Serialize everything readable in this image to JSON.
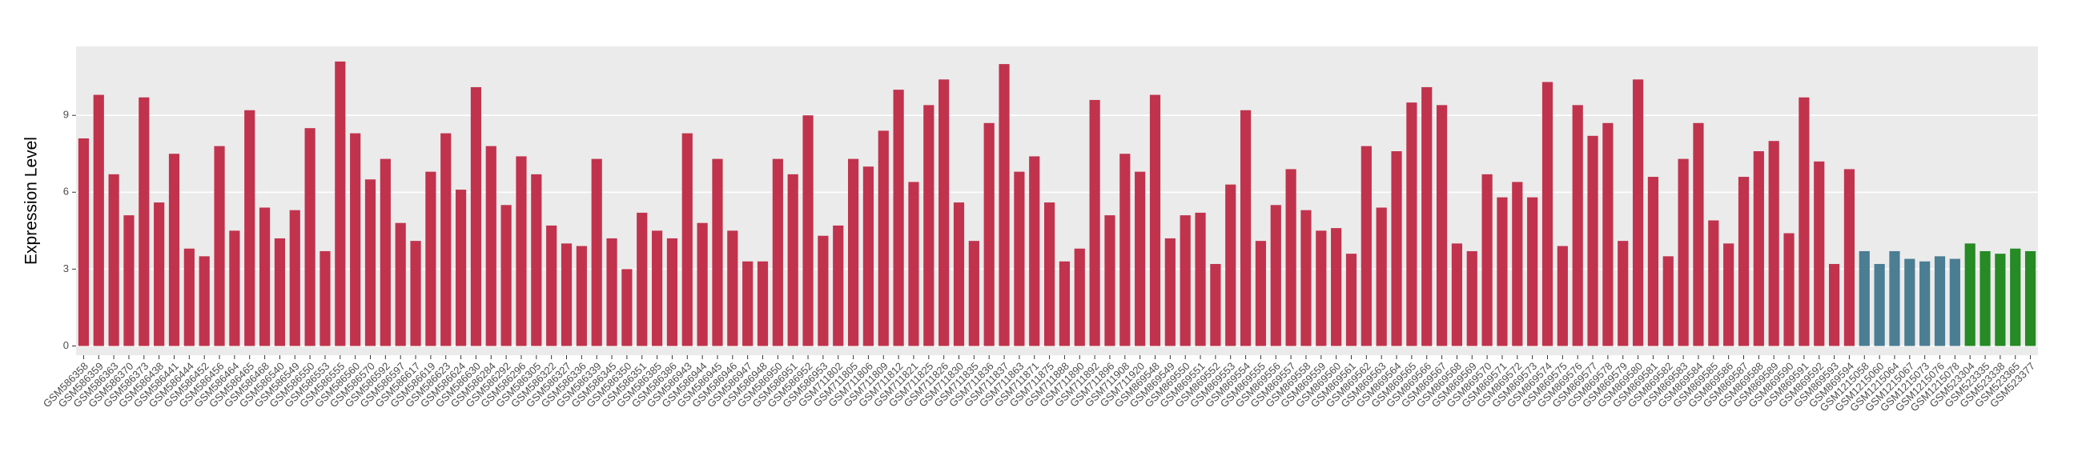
{
  "chart_data": {
    "type": "bar",
    "y_label": "Expression Level",
    "categories": [
      "GSM586358",
      "GSM586359",
      "GSM586363",
      "GSM586370",
      "GSM586373",
      "GSM586438",
      "GSM586441",
      "GSM586444",
      "GSM586452",
      "GSM586456",
      "GSM586464",
      "GSM586465",
      "GSM586468",
      "GSM586540",
      "GSM586549",
      "GSM586550",
      "GSM586553",
      "GSM586555",
      "GSM586560",
      "GSM586570",
      "GSM586592",
      "GSM586597",
      "GSM586617",
      "GSM586619",
      "GSM586623",
      "GSM586624",
      "GSM586630",
      "GSM586284",
      "GSM586292",
      "GSM586296",
      "GSM586305",
      "GSM586322",
      "GSM586327",
      "GSM586336",
      "GSM586339",
      "GSM586345",
      "GSM586350",
      "GSM586351",
      "GSM586385",
      "GSM586386",
      "GSM586943",
      "GSM586944",
      "GSM586945",
      "GSM586946",
      "GSM586947",
      "GSM586948",
      "GSM586950",
      "GSM586951",
      "GSM586952",
      "GSM586953",
      "GSM711802",
      "GSM711805",
      "GSM711806",
      "GSM711809",
      "GSM711812",
      "GSM711821",
      "GSM711825",
      "GSM711826",
      "GSM711830",
      "GSM711835",
      "GSM711836",
      "GSM711837",
      "GSM711863",
      "GSM711871",
      "GSM711875",
      "GSM711888",
      "GSM711890",
      "GSM711892",
      "GSM711896",
      "GSM711908",
      "GSM711920",
      "GSM869548",
      "GSM869549",
      "GSM869550",
      "GSM869551",
      "GSM869552",
      "GSM869553",
      "GSM869554",
      "GSM869555",
      "GSM869556",
      "GSM869557",
      "GSM869558",
      "GSM869559",
      "GSM869560",
      "GSM869561",
      "GSM869562",
      "GSM869563",
      "GSM869564",
      "GSM869565",
      "GSM869566",
      "GSM869567",
      "GSM869568",
      "GSM869569",
      "GSM869570",
      "GSM869571",
      "GSM869572",
      "GSM869573",
      "GSM869574",
      "GSM869575",
      "GSM869576",
      "GSM869577",
      "GSM869578",
      "GSM869579",
      "GSM869580",
      "GSM869581",
      "GSM869582",
      "GSM869583",
      "GSM869584",
      "GSM869585",
      "GSM869586",
      "GSM869587",
      "GSM869588",
      "GSM869589",
      "GSM869590",
      "GSM869591",
      "GSM869592",
      "GSM869593",
      "GSM869594",
      "GSM1215058",
      "GSM1215060",
      "GSM1215064",
      "GSM1215067",
      "GSM1215073",
      "GSM1215076",
      "GSM1215078",
      "GSM523304",
      "GSM523335",
      "GSM523338",
      "GSM523365",
      "GSM523377"
    ],
    "values": [
      8.1,
      9.8,
      6.7,
      5.1,
      9.7,
      5.6,
      7.5,
      3.8,
      3.5,
      7.8,
      4.5,
      9.2,
      5.4,
      4.2,
      5.3,
      8.5,
      3.7,
      11.1,
      8.3,
      6.5,
      7.3,
      4.8,
      4.1,
      6.8,
      8.3,
      6.1,
      10.1,
      7.8,
      5.5,
      7.4,
      6.7,
      4.7,
      4.0,
      3.9,
      7.3,
      4.2,
      3.0,
      5.2,
      4.5,
      4.2,
      8.3,
      4.8,
      7.3,
      4.5,
      3.3,
      3.3,
      7.3,
      6.7,
      9.0,
      4.3,
      4.7,
      7.3,
      7.0,
      8.4,
      10.0,
      6.4,
      9.4,
      10.4,
      5.6,
      4.1,
      8.7,
      11.0,
      6.8,
      7.4,
      5.6,
      3.3,
      3.8,
      9.6,
      5.1,
      7.5,
      6.8,
      9.8,
      4.2,
      5.1,
      5.2,
      3.2,
      6.3,
      9.2,
      4.1,
      5.5,
      6.9,
      5.3,
      4.5,
      4.6,
      3.6,
      7.8,
      5.4,
      7.6,
      9.5,
      10.1,
      9.4,
      4.0,
      3.7,
      6.7,
      5.8,
      6.4,
      5.8,
      10.3,
      3.9,
      9.4,
      8.2,
      8.7,
      4.1,
      10.4,
      6.6,
      3.5,
      7.3,
      8.7,
      4.9,
      4.0,
      6.6,
      7.6,
      8.0,
      4.4,
      9.7,
      7.2,
      3.2,
      6.9,
      3.7,
      3.2,
      3.7,
      3.4,
      3.3,
      3.5,
      3.4,
      4.0,
      3.7,
      3.6,
      3.8,
      3.7
    ],
    "colors": [
      "#c1334d",
      "#c1334d",
      "#c1334d",
      "#c1334d",
      "#c1334d",
      "#c1334d",
      "#c1334d",
      "#c1334d",
      "#c1334d",
      "#c1334d",
      "#c1334d",
      "#c1334d",
      "#c1334d",
      "#c1334d",
      "#c1334d",
      "#c1334d",
      "#c1334d",
      "#c1334d",
      "#c1334d",
      "#c1334d",
      "#c1334d",
      "#c1334d",
      "#c1334d",
      "#c1334d",
      "#c1334d",
      "#c1334d",
      "#c1334d",
      "#c1334d",
      "#c1334d",
      "#c1334d",
      "#c1334d",
      "#c1334d",
      "#c1334d",
      "#c1334d",
      "#c1334d",
      "#c1334d",
      "#c1334d",
      "#c1334d",
      "#c1334d",
      "#c1334d",
      "#c1334d",
      "#c1334d",
      "#c1334d",
      "#c1334d",
      "#c1334d",
      "#c1334d",
      "#c1334d",
      "#c1334d",
      "#c1334d",
      "#c1334d",
      "#c1334d",
      "#c1334d",
      "#c1334d",
      "#c1334d",
      "#c1334d",
      "#c1334d",
      "#c1334d",
      "#c1334d",
      "#c1334d",
      "#c1334d",
      "#c1334d",
      "#c1334d",
      "#c1334d",
      "#c1334d",
      "#c1334d",
      "#c1334d",
      "#c1334d",
      "#c1334d",
      "#c1334d",
      "#c1334d",
      "#c1334d",
      "#c1334d",
      "#c1334d",
      "#c1334d",
      "#c1334d",
      "#c1334d",
      "#c1334d",
      "#c1334d",
      "#c1334d",
      "#c1334d",
      "#c1334d",
      "#c1334d",
      "#c1334d",
      "#c1334d",
      "#c1334d",
      "#c1334d",
      "#c1334d",
      "#c1334d",
      "#c1334d",
      "#c1334d",
      "#c1334d",
      "#c1334d",
      "#c1334d",
      "#c1334d",
      "#c1334d",
      "#c1334d",
      "#c1334d",
      "#c1334d",
      "#c1334d",
      "#c1334d",
      "#c1334d",
      "#c1334d",
      "#c1334d",
      "#c1334d",
      "#c1334d",
      "#c1334d",
      "#c1334d",
      "#c1334d",
      "#c1334d",
      "#c1334d",
      "#c1334d",
      "#c1334d",
      "#c1334d",
      "#c1334d",
      "#c1334d",
      "#c1334d",
      "#c1334d",
      "#c1334d",
      "#4b7d93",
      "#4b7d93",
      "#4b7d93",
      "#4b7d93",
      "#4b7d93",
      "#4b7d93",
      "#4b7d93",
      "#268a25",
      "#268a25",
      "#268a25",
      "#268a25",
      "#268a25"
    ],
    "ylim": [
      -0.36,
      11.69
    ],
    "yticks": [
      0,
      3,
      6,
      9
    ],
    "grid": true
  }
}
